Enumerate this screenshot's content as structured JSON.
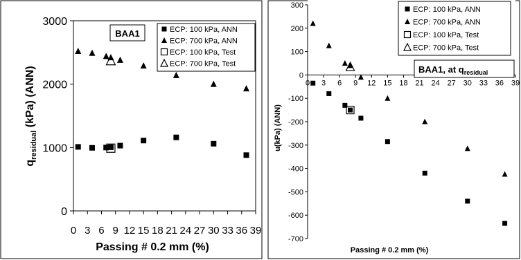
{
  "chart_data": [
    {
      "type": "scatter",
      "title": "",
      "annotation": "BAA1",
      "xlabel": "Passing # 0.2 mm (%)",
      "ylabel_main": "q",
      "ylabel_sub": "residual",
      "ylabel_rest": " (kPa) (ANN)",
      "xlim": [
        0,
        39
      ],
      "ylim": [
        0,
        3000
      ],
      "xticks": [
        "0",
        "3",
        "6",
        "9",
        "12",
        "15",
        "18",
        "21",
        "24",
        "27",
        "30",
        "33",
        "36",
        "39"
      ],
      "yticks": [
        "0",
        "1000",
        "2000",
        "3000"
      ],
      "legend_position": "top-right",
      "grid": false,
      "series": [
        {
          "name": "ECP: 100 kPa, ANN",
          "marker": "square-filled",
          "x": [
            1,
            4,
            7,
            8,
            10,
            15,
            22,
            30,
            37
          ],
          "y": [
            1010,
            995,
            1000,
            1005,
            1030,
            1110,
            1160,
            1060,
            880
          ]
        },
        {
          "name": "ECP: 700 kPa, ANN",
          "marker": "triangle-filled",
          "x": [
            1,
            4,
            7,
            8,
            10,
            15,
            22,
            30,
            37
          ],
          "y": [
            2520,
            2490,
            2440,
            2420,
            2380,
            2290,
            2140,
            2000,
            1930
          ]
        },
        {
          "name": "ECP: 100 kPa, Test",
          "marker": "square-open",
          "x": [
            8
          ],
          "y": [
            990
          ]
        },
        {
          "name": "ECP: 700 kPa, Test",
          "marker": "triangle-open",
          "x": [
            8
          ],
          "y": [
            2370
          ]
        }
      ]
    },
    {
      "type": "scatter",
      "title": "",
      "annotation_main": "BAA1, at q",
      "annotation_sub": "residual",
      "xlabel": "Passing # 0.2 mm (%)",
      "ylabel": "u(kPa) (ANN)",
      "xlim": [
        0,
        39
      ],
      "ylim": [
        -700,
        300
      ],
      "xticks": [
        "0",
        "3",
        "6",
        "9",
        "12",
        "15",
        "18",
        "21",
        "24",
        "27",
        "30",
        "33",
        "36",
        "39"
      ],
      "yticks": [
        "-700",
        "-600",
        "-500",
        "-400",
        "-300",
        "-200",
        "-100",
        "0",
        "100",
        "200",
        "300"
      ],
      "legend_position": "top-right",
      "grid": false,
      "series": [
        {
          "name": "ECP: 100 kPa, ANN",
          "marker": "square-filled",
          "x": [
            1,
            4,
            7,
            8,
            10,
            15,
            22,
            30,
            37
          ],
          "y": [
            -35,
            -80,
            -130,
            -150,
            -185,
            -285,
            -420,
            -540,
            -635
          ]
        },
        {
          "name": "ECP: 700 kPa, ANN",
          "marker": "triangle-filled",
          "x": [
            1,
            4,
            7,
            8,
            10,
            15,
            22,
            30,
            37
          ],
          "y": [
            220,
            125,
            50,
            40,
            -10,
            -100,
            -200,
            -315,
            -425
          ]
        },
        {
          "name": "ECP: 100 kPa, Test",
          "marker": "square-open",
          "x": [
            8
          ],
          "y": [
            -150
          ]
        },
        {
          "name": "ECP: 700 kPa, Test",
          "marker": "triangle-open",
          "x": [
            8
          ],
          "y": [
            35
          ]
        }
      ]
    }
  ]
}
